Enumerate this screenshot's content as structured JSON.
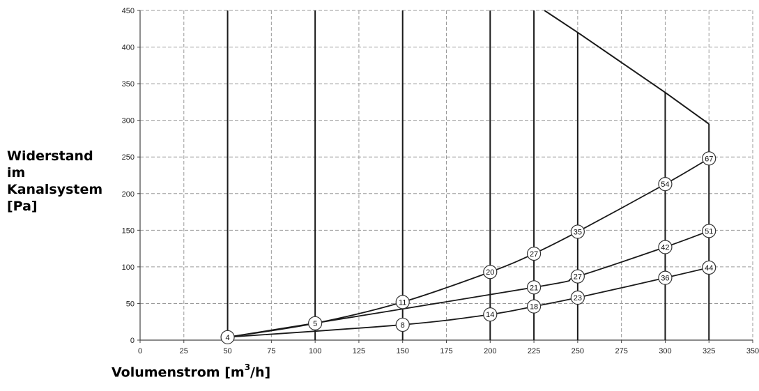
{
  "chart_data": {
    "type": "line",
    "title": "",
    "ylabel_lines": [
      "Widerstand",
      "im",
      "Kanalsystem",
      "[Pa]"
    ],
    "xlabel": {
      "prefix": "Volumenstrom [m",
      "sup": "3",
      "suffix": "/h]"
    },
    "xlim": [
      0,
      350
    ],
    "ylim": [
      0,
      450
    ],
    "xticks": [
      0,
      25,
      50,
      75,
      100,
      125,
      150,
      175,
      200,
      225,
      250,
      275,
      300,
      325,
      350
    ],
    "yticks": [
      0,
      50,
      100,
      150,
      200,
      250,
      300,
      350,
      400,
      450
    ],
    "grid": true,
    "vertical_lines": [
      {
        "x": 50,
        "y_top": 450
      },
      {
        "x": 100,
        "y_top": 450
      },
      {
        "x": 150,
        "y_top": 450
      },
      {
        "x": 200,
        "y_top": 450
      },
      {
        "x": 225,
        "y_top": 450
      },
      {
        "x": 250,
        "y_top": 420
      },
      {
        "x": 300,
        "y_top": 338
      },
      {
        "x": 325,
        "y_top": 295
      }
    ],
    "limit_curve": [
      [
        231,
        450
      ],
      [
        250,
        420
      ],
      [
        300,
        338
      ],
      [
        325,
        295
      ]
    ],
    "series": [
      {
        "points": [
          {
            "x": 50,
            "y": 4,
            "label": "4"
          },
          {
            "x": 100,
            "y": 23,
            "label": "5"
          },
          {
            "x": 150,
            "y": 52,
            "label": "11"
          },
          {
            "x": 200,
            "y": 93,
            "label": "20"
          },
          {
            "x": 225,
            "y": 118,
            "label": "27"
          },
          {
            "x": 250,
            "y": 148,
            "label": "35"
          },
          {
            "x": 300,
            "y": 213,
            "label": "54"
          },
          {
            "x": 325,
            "y": 248,
            "label": "67"
          }
        ]
      },
      {
        "points": [
          {
            "x": 50,
            "y": 4,
            "label": ""
          },
          {
            "x": 225,
            "y": 72,
            "label": "21"
          },
          {
            "x": 250,
            "y": 87,
            "label": "27"
          },
          {
            "x": 300,
            "y": 127,
            "label": "42"
          },
          {
            "x": 325,
            "y": 149,
            "label": "51"
          }
        ]
      },
      {
        "points": [
          {
            "x": 50,
            "y": 4,
            "label": ""
          },
          {
            "x": 150,
            "y": 21,
            "label": "8"
          },
          {
            "x": 200,
            "y": 35,
            "label": "14"
          },
          {
            "x": 225,
            "y": 46,
            "label": "18"
          },
          {
            "x": 250,
            "y": 58,
            "label": "23"
          },
          {
            "x": 300,
            "y": 85,
            "label": "36"
          },
          {
            "x": 325,
            "y": 99,
            "label": "44"
          }
        ]
      }
    ]
  }
}
